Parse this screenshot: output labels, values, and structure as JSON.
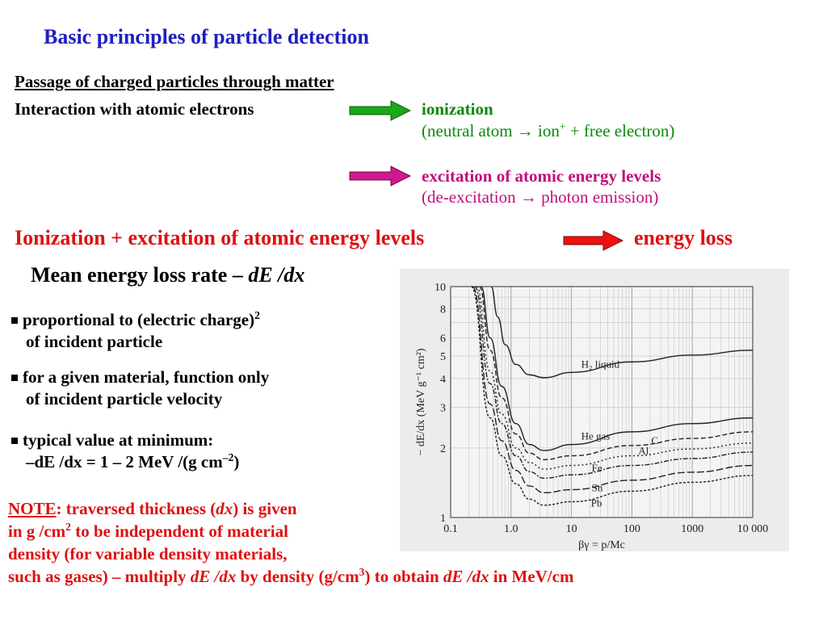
{
  "title": "Basic principles of particle detection",
  "passage_heading": "Passage of charged particles through matter",
  "interaction_text": "Interaction with atomic electrons",
  "ionization": {
    "label": "ionization",
    "desc_pre": "(neutral atom → ion",
    "desc_sup": "+",
    "desc_post": " + free electron)"
  },
  "excitation": {
    "label": "excitation of atomic energy levels",
    "desc": "(de-excitation → photon emission)"
  },
  "headline": {
    "left": "Ionization + excitation of atomic energy levels",
    "right": "energy loss"
  },
  "mean_rate": {
    "text": "Mean energy loss rate – ",
    "formula": "dE /dx"
  },
  "bullets": [
    {
      "line1": "proportional to (electric charge)",
      "sup": "2",
      "line2": "of incident particle"
    },
    {
      "line1": "for a given material, function only",
      "line2": "of incident particle velocity"
    },
    {
      "line1": "typical value at minimum:",
      "line2_pre": "–dE /dx = 1 – 2 MeV /(g cm",
      "line2_sup": "–2",
      "line2_post": ")"
    }
  ],
  "note": {
    "word": "NOTE",
    "l1_a": ": traversed thickness (",
    "l1_i": "dx",
    "l1_b": ") is given",
    "l2_a": "in g /cm",
    "l2_sup": "2",
    "l2_b": " to be independent of material",
    "l3": "density (for variable density materials,",
    "l4_a": "such as gases) – multiply ",
    "l4_i1": "dE /dx",
    "l4_b": " by density (g/cm",
    "l4_sup": "3",
    "l4_c": ") to obtain ",
    "l4_i2": "dE /dx",
    "l4_d": " in MeV/cm"
  },
  "colors": {
    "title": "#1f1fbf",
    "ionization": "#0a8a0a",
    "excitation": "#c0107a",
    "highlight": "#dd1111"
  },
  "icons": [
    "green-arrow-icon",
    "magenta-arrow-icon",
    "red-arrow-icon"
  ],
  "chart_data": {
    "type": "line",
    "scale": "log-log",
    "xlabel": "βγ = p/Mc",
    "ylabel": "− dE/dx (MeV g⁻¹ cm²)",
    "xlim": [
      0.1,
      10000
    ],
    "ylim": [
      1,
      10
    ],
    "x_ticks": [
      "0.1",
      "1.0",
      "10",
      "100",
      "1000",
      "10 000"
    ],
    "y_ticks": [
      "1",
      "2",
      "3",
      "4",
      "5",
      "6",
      "8",
      "10"
    ],
    "grid": true,
    "series": [
      {
        "name": "H₂ liquid",
        "x": [
          0.47,
          0.6,
          0.8,
          1.2,
          2,
          3.5,
          10,
          100,
          1000,
          10000
        ],
        "y": [
          10,
          7.4,
          5.6,
          4.6,
          4.15,
          4.03,
          4.25,
          4.72,
          5.05,
          5.3
        ]
      },
      {
        "name": "He gas",
        "x": [
          0.32,
          0.45,
          0.7,
          1.2,
          2,
          3.5,
          10,
          100,
          1000,
          10000
        ],
        "y": [
          10,
          6.0,
          3.7,
          2.55,
          2.07,
          1.95,
          2.07,
          2.35,
          2.55,
          2.7
        ]
      },
      {
        "name": "C",
        "x": [
          0.3,
          0.45,
          0.7,
          1.2,
          2,
          3.5,
          10,
          100,
          1000,
          10000
        ],
        "y": [
          10,
          5.3,
          3.3,
          2.3,
          1.9,
          1.78,
          1.85,
          2.05,
          2.2,
          2.35
        ]
      },
      {
        "name": "Al",
        "x": [
          0.27,
          0.45,
          0.7,
          1.2,
          2,
          3.5,
          10,
          100,
          1000,
          10000
        ],
        "y": [
          10,
          4.3,
          2.8,
          2.0,
          1.73,
          1.62,
          1.68,
          1.85,
          1.98,
          2.1
        ]
      },
      {
        "name": "Fe",
        "x": [
          0.25,
          0.45,
          0.7,
          1.2,
          2,
          3.5,
          10,
          100,
          1000,
          10000
        ],
        "y": [
          10,
          3.8,
          2.55,
          1.85,
          1.58,
          1.48,
          1.53,
          1.68,
          1.8,
          1.92
        ]
      },
      {
        "name": "Sn",
        "x": [
          0.23,
          0.45,
          0.7,
          1.2,
          2,
          3.5,
          10,
          100,
          1000,
          10000
        ],
        "y": [
          10,
          3.1,
          2.15,
          1.6,
          1.37,
          1.28,
          1.32,
          1.45,
          1.57,
          1.68
        ]
      },
      {
        "name": "Pb",
        "x": [
          0.22,
          0.45,
          0.7,
          1.2,
          2,
          3.5,
          10,
          100,
          1000,
          10000
        ],
        "y": [
          10,
          2.7,
          1.85,
          1.4,
          1.2,
          1.13,
          1.17,
          1.3,
          1.42,
          1.52
        ]
      }
    ]
  }
}
